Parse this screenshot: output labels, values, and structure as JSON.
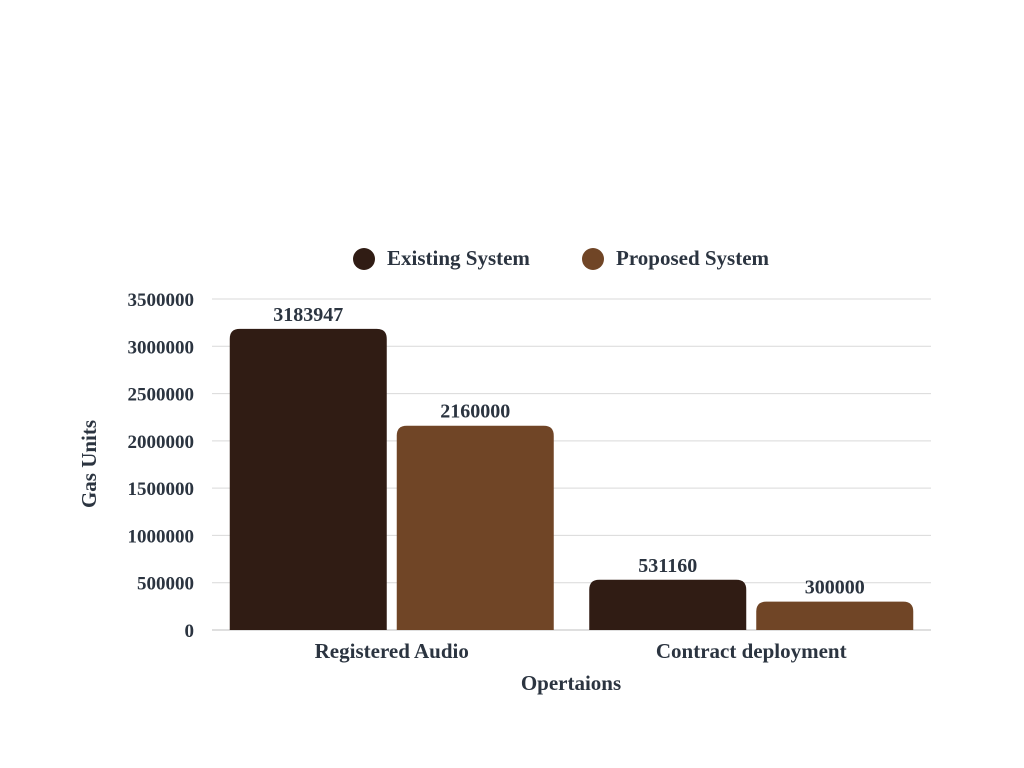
{
  "chart_data": {
    "type": "bar",
    "categories": [
      "Registered Audio",
      "Contract deployment"
    ],
    "series": [
      {
        "name": "Existing System",
        "color": "#301c14",
        "values": [
          3183947,
          531160
        ]
      },
      {
        "name": "Proposed System",
        "color": "#704526",
        "values": [
          2160000,
          300000
        ]
      }
    ],
    "xlabel": "Opertaions",
    "ylabel": "Gas Units",
    "ylim": [
      0,
      3500000
    ],
    "yticks": [
      0,
      500000,
      1000000,
      1500000,
      2000000,
      2500000,
      3000000,
      3500000
    ],
    "grid": true,
    "legend_position": "top-center",
    "data_labels": true
  }
}
